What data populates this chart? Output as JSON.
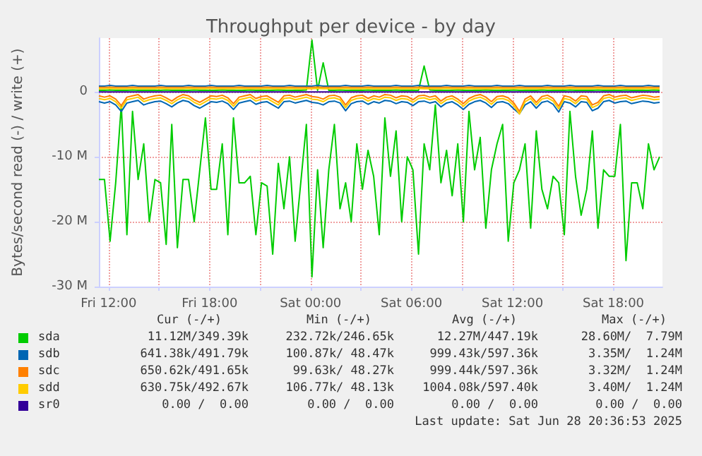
{
  "chart_data": {
    "type": "line",
    "title": "Throughput per device - by day",
    "ylabel": "Bytes/second read (-) / write (+)",
    "x": [
      "2025-06-27T11:25",
      "2025-06-27T11:45",
      "2025-06-27T12:05",
      "2025-06-27T12:25",
      "2025-06-27T12:45",
      "2025-06-27T13:05",
      "2025-06-27T13:25",
      "2025-06-27T13:45",
      "2025-06-27T14:05",
      "2025-06-27T14:25",
      "2025-06-27T14:45",
      "2025-06-27T15:05",
      "2025-06-27T15:25",
      "2025-06-27T15:45",
      "2025-06-27T16:05",
      "2025-06-27T16:25",
      "2025-06-27T16:45",
      "2025-06-27T17:05",
      "2025-06-27T17:25",
      "2025-06-27T17:45",
      "2025-06-27T18:05",
      "2025-06-27T18:25",
      "2025-06-27T18:45",
      "2025-06-27T19:05",
      "2025-06-27T19:25",
      "2025-06-27T19:45",
      "2025-06-27T20:05",
      "2025-06-27T20:25",
      "2025-06-27T20:45",
      "2025-06-27T21:05",
      "2025-06-27T21:25",
      "2025-06-27T21:45",
      "2025-06-27T22:05",
      "2025-06-27T22:25",
      "2025-06-27T22:45",
      "2025-06-27T23:05",
      "2025-06-27T23:25",
      "2025-06-27T23:45",
      "2025-06-28T00:05",
      "2025-06-28T00:25",
      "2025-06-28T00:45",
      "2025-06-28T01:05",
      "2025-06-28T01:25",
      "2025-06-28T01:45",
      "2025-06-28T02:05",
      "2025-06-28T02:25",
      "2025-06-28T02:45",
      "2025-06-28T03:05",
      "2025-06-28T03:25",
      "2025-06-28T03:45",
      "2025-06-28T04:05",
      "2025-06-28T04:25",
      "2025-06-28T04:45",
      "2025-06-28T05:05",
      "2025-06-28T05:25",
      "2025-06-28T05:45",
      "2025-06-28T06:05",
      "2025-06-28T06:25",
      "2025-06-28T06:45",
      "2025-06-28T07:05",
      "2025-06-28T07:25",
      "2025-06-28T07:45",
      "2025-06-28T08:05",
      "2025-06-28T08:25",
      "2025-06-28T08:45",
      "2025-06-28T09:05",
      "2025-06-28T09:25",
      "2025-06-28T09:45",
      "2025-06-28T10:05",
      "2025-06-28T10:25",
      "2025-06-28T10:45",
      "2025-06-28T11:05",
      "2025-06-28T11:25",
      "2025-06-28T11:45",
      "2025-06-28T12:05",
      "2025-06-28T12:25",
      "2025-06-28T12:45",
      "2025-06-28T13:05",
      "2025-06-28T13:25",
      "2025-06-28T13:45",
      "2025-06-28T14:05",
      "2025-06-28T14:25",
      "2025-06-28T14:45",
      "2025-06-28T15:05",
      "2025-06-28T15:25",
      "2025-06-28T15:45",
      "2025-06-28T16:05",
      "2025-06-28T16:25",
      "2025-06-28T16:45",
      "2025-06-28T17:05",
      "2025-06-28T17:25",
      "2025-06-28T17:45",
      "2025-06-28T18:05",
      "2025-06-28T18:25",
      "2025-06-28T18:45",
      "2025-06-28T19:05",
      "2025-06-28T19:25",
      "2025-06-28T19:45",
      "2025-06-28T20:05",
      "2025-06-28T20:25",
      "2025-06-28T20:45"
    ],
    "xlim": [
      "2025-06-27T11:25",
      "2025-06-28T20:55"
    ],
    "xticks": [
      {
        "value": "2025-06-27T12:00",
        "label": "Fri 12:00"
      },
      {
        "value": "2025-06-27T15:00",
        "label": null
      },
      {
        "value": "2025-06-27T18:00",
        "label": "Fri 18:00"
      },
      {
        "value": "2025-06-27T21:00",
        "label": null
      },
      {
        "value": "2025-06-28T00:00",
        "label": "Sat 00:00"
      },
      {
        "value": "2025-06-28T03:00",
        "label": null
      },
      {
        "value": "2025-06-28T06:00",
        "label": "Sat 06:00"
      },
      {
        "value": "2025-06-28T09:00",
        "label": null
      },
      {
        "value": "2025-06-28T12:00",
        "label": "Sat 12:00"
      },
      {
        "value": "2025-06-28T15:00",
        "label": null
      },
      {
        "value": "2025-06-28T18:00",
        "label": "Sat 18:00"
      }
    ],
    "ylim": [
      -30,
      8.3
    ],
    "yticks": [
      {
        "value": -30,
        "label": "-30 M"
      },
      {
        "value": -20,
        "label": "-20 M"
      },
      {
        "value": -10,
        "label": "-10 M"
      },
      {
        "value": 0,
        "label": "0"
      }
    ],
    "grid": true,
    "legend": "bottom",
    "marker": "none",
    "line_style": "solid",
    "series": [
      {
        "name": "sda",
        "color": "#00cc00",
        "values": [
          -13.5,
          -13.5,
          -23,
          -14,
          -2,
          -22,
          -3,
          -13.5,
          -8,
          -20,
          -13.5,
          -14,
          -23.5,
          -5,
          -24,
          -13.5,
          -13.5,
          -20,
          -12,
          -4,
          -15,
          -15,
          -8,
          -22,
          -4,
          -14,
          -14,
          -13,
          -22,
          -14,
          -14.5,
          -25,
          -11,
          -18,
          -10,
          -23,
          -14,
          -5,
          -28.5,
          -12,
          -24,
          -12,
          -5,
          -18,
          -14,
          -20,
          -8,
          -15,
          -9,
          -13,
          -22,
          -4,
          -13,
          -6,
          -20,
          -10,
          -12,
          -25,
          -8,
          -12,
          -2,
          -14,
          -9,
          -16,
          -8,
          -20,
          -3,
          -12,
          -7,
          -21,
          -12,
          -8,
          -5,
          -23,
          -14,
          -12,
          -8,
          -21,
          -6,
          -15,
          -18,
          -13,
          -14,
          -22,
          -3,
          -13,
          -19,
          -15,
          -6,
          -21,
          -12,
          -13,
          -13,
          -5,
          -26,
          -14,
          -14,
          -18,
          -8,
          -12,
          -10
        ]
      },
      {
        "color": "#00cc00",
        "values": [
          0.25,
          0.25,
          0.3,
          0.25,
          0.25,
          0.25,
          0.3,
          0.25,
          0.25,
          0.25,
          0.25,
          0.25,
          0.3,
          0.25,
          0.25,
          0.25,
          0.25,
          0.3,
          0.25,
          0.25,
          0.25,
          0.25,
          0.3,
          0.25,
          0.25,
          0.25,
          0.25,
          0.3,
          0.25,
          0.25,
          0.25,
          0.25,
          0.3,
          0.25,
          0.25,
          0.25,
          0.25,
          0.3,
          8,
          0.25,
          4.5,
          0.25,
          0.25,
          0.3,
          0.25,
          0.25,
          0.25,
          0.25,
          0.3,
          0.25,
          0.25,
          0.25,
          0.25,
          0.3,
          0.25,
          0.25,
          0.25,
          0.25,
          4,
          0.3,
          0.25,
          0.25,
          0.25,
          0.25,
          0.3,
          0.25,
          0.25,
          0.25,
          0.25,
          0.3,
          0.25,
          0.25,
          0.25,
          0.25,
          0.3,
          0.25,
          0.25,
          0.25,
          0.25,
          0.3,
          0.25,
          0.25,
          0.25,
          0.25,
          0.3,
          0.25,
          0.25,
          0.25,
          0.25,
          0.3,
          0.25,
          0.25,
          0.25,
          0.25,
          0.3,
          0.25,
          0.25,
          0.25,
          0.25,
          0.3,
          0.25
        ]
      },
      {
        "name": "sdb",
        "color": "#0066b3",
        "values": [
          -1.5,
          -1.7,
          -1.5,
          -2,
          -3,
          -1.7,
          -1.5,
          -1.3,
          -2,
          -1.7,
          -1.5,
          -1.4,
          -1.8,
          -2.3,
          -1.7,
          -1.3,
          -1.5,
          -2.1,
          -2.5,
          -2,
          -1.5,
          -1.6,
          -1.4,
          -1.8,
          -2.7,
          -1.7,
          -1.5,
          -1.3,
          -1.9,
          -1.6,
          -1.5,
          -2,
          -2.5,
          -1.5,
          -1.4,
          -1.7,
          -1.5,
          -1.3,
          -1.6,
          -1.7,
          -2,
          -1.5,
          -1.4,
          -1.7,
          -2.9,
          -1.8,
          -1.5,
          -1.4,
          -1.9,
          -1.5,
          -1.7,
          -1.3,
          -1.4,
          -1.8,
          -1.5,
          -1.6,
          -2.1,
          -1.5,
          -1.4,
          -1.7,
          -1.5,
          -2.3,
          -1.7,
          -1.5,
          -2,
          -2.7,
          -1.9,
          -1.5,
          -1.3,
          -1.7,
          -2.4,
          -1.6,
          -1.5,
          -1.8,
          -2.6,
          -3.35,
          -2,
          -1.5,
          -2.5,
          -1.6,
          -1.4,
          -1.9,
          -3.1,
          -1.5,
          -1.7,
          -2.3,
          -1.5,
          -1.6,
          -2.9,
          -2.5,
          -1.5,
          -1.3,
          -1.7,
          -1.5,
          -1.4,
          -1.8,
          -1.6,
          -1.4,
          -1.5,
          -1.7,
          -1.6
        ]
      },
      {
        "color": "#0066b3",
        "values": [
          0.9,
          0.9,
          1,
          0.9,
          0.9,
          0.9,
          1,
          0.9,
          0.9,
          0.9,
          0.9,
          1,
          0.9,
          0.9,
          0.9,
          0.9,
          1,
          0.9,
          0.9,
          0.9,
          1,
          0.9,
          0.9,
          0.9,
          0.9,
          1,
          0.9,
          0.9,
          0.9,
          0.9,
          1,
          0.9,
          0.9,
          0.9,
          1,
          0.9,
          0.9,
          0.9,
          0.9,
          1,
          0.9,
          0.9,
          0.9,
          0.9,
          1,
          0.9,
          0.9,
          0.9,
          1,
          0.9,
          0.9,
          0.9,
          0.9,
          1,
          0.9,
          0.9,
          0.9,
          1,
          0.9,
          0.9,
          0.9,
          0.9,
          1,
          0.9,
          0.9,
          0.9,
          1,
          0.9,
          0.9,
          0.9,
          0.9,
          1,
          0.9,
          0.9,
          0.9,
          1,
          0.9,
          0.9,
          0.9,
          0.9,
          1,
          0.9,
          0.9,
          0.9,
          1,
          0.9,
          0.9,
          0.9,
          0.9,
          1,
          0.9,
          0.9,
          0.9,
          1,
          0.9,
          0.9,
          0.9,
          0.9,
          1,
          0.9,
          0.9
        ]
      },
      {
        "name": "sdc",
        "color": "#ff8000",
        "values": [
          -0.6,
          -0.8,
          -0.6,
          -1.1,
          -2.1,
          -0.8,
          -0.6,
          -0.4,
          -1.1,
          -0.8,
          -0.6,
          -0.5,
          -0.9,
          -1.4,
          -0.8,
          -0.4,
          -0.6,
          -1.2,
          -1.6,
          -1.1,
          -0.6,
          -0.7,
          -0.5,
          -0.9,
          -1.8,
          -0.8,
          -0.6,
          -0.4,
          -1,
          -0.7,
          -0.6,
          -1.1,
          -1.6,
          -0.6,
          -0.5,
          -0.8,
          -0.6,
          -0.4,
          -0.7,
          -0.8,
          -1.1,
          -0.6,
          -0.5,
          -0.8,
          -2,
          -0.9,
          -0.6,
          -0.5,
          -1,
          -0.6,
          -0.8,
          -0.4,
          -0.5,
          -0.9,
          -0.6,
          -0.7,
          -1.2,
          -0.6,
          -0.5,
          -0.8,
          -0.6,
          -1.4,
          -0.8,
          -0.6,
          -1.1,
          -1.8,
          -1,
          -0.6,
          -0.4,
          -0.8,
          -1.5,
          -0.7,
          -0.6,
          -0.9,
          -1.7,
          -3,
          -1.1,
          -0.6,
          -1.6,
          -0.7,
          -0.5,
          -1,
          -2.2,
          -0.6,
          -0.8,
          -1.4,
          -0.6,
          -0.7,
          -2,
          -1.6,
          -0.6,
          -0.4,
          -0.8,
          -0.6,
          -0.5,
          -0.9,
          -0.7,
          -0.5,
          -0.6,
          -0.8,
          -0.7
        ]
      },
      {
        "color": "#ff8000",
        "values": [
          0.7,
          0.7,
          0.75,
          0.7,
          0.7,
          0.7,
          0.75,
          0.7,
          0.7,
          0.7,
          0.7,
          0.75,
          0.7,
          0.7,
          0.7,
          0.7,
          0.75,
          0.7,
          0.7,
          0.7,
          0.75,
          0.7,
          0.7,
          0.7,
          0.7,
          0.75,
          0.7,
          0.7,
          0.7,
          0.7,
          0.75,
          0.7,
          0.7,
          0.7,
          0.75,
          0.7,
          0.7,
          0.7,
          0.7,
          0.75,
          0.7,
          0.7,
          0.7,
          0.7,
          0.75,
          0.7,
          0.7,
          0.7,
          0.75,
          0.7,
          0.7,
          0.7,
          0.7,
          0.75,
          0.7,
          0.7,
          0.7,
          0.75,
          0.7,
          0.7,
          0.7,
          0.7,
          0.75,
          0.7,
          0.7,
          0.7,
          0.75,
          0.7,
          0.7,
          0.7,
          0.7,
          0.75,
          0.7,
          0.7,
          0.7,
          0.75,
          0.7,
          0.7,
          0.7,
          0.7,
          0.75,
          0.7,
          0.7,
          0.7,
          0.75,
          0.7,
          0.7,
          0.7,
          0.7,
          0.75,
          0.7,
          0.7,
          0.7,
          0.75,
          0.7,
          0.7,
          0.7,
          0.7,
          0.75,
          0.7,
          0.7
        ]
      },
      {
        "name": "sdd",
        "color": "#ffcc00",
        "values": [
          -1,
          -1.2,
          -1,
          -1.5,
          -2.5,
          -1.2,
          -1,
          -0.8,
          -1.5,
          -1.2,
          -1,
          -0.9,
          -1.3,
          -1.8,
          -1.2,
          -0.8,
          -1,
          -1.6,
          -2,
          -1.5,
          -1,
          -1.1,
          -0.9,
          -1.3,
          -2.2,
          -1.2,
          -1,
          -0.8,
          -1.4,
          -1.1,
          -1,
          -1.5,
          -2,
          -1,
          -0.9,
          -1.2,
          -1,
          -0.8,
          -1.1,
          -1.2,
          -1.5,
          -1,
          -0.9,
          -1.2,
          -2.4,
          -1.3,
          -1,
          -0.9,
          -1.4,
          -1,
          -1.2,
          -0.8,
          -0.9,
          -1.3,
          -1,
          -1.1,
          -1.6,
          -1,
          -0.9,
          -1.2,
          -1,
          -1.8,
          -1.2,
          -1,
          -1.5,
          -2.2,
          -1.4,
          -1,
          -0.8,
          -1.2,
          -1.9,
          -1.1,
          -1,
          -1.3,
          -2.1,
          -3.4,
          -1.5,
          -1,
          -2,
          -1.1,
          -0.9,
          -1.4,
          -2.6,
          -1,
          -1.2,
          -1.8,
          -1,
          -1.1,
          -2.4,
          -2,
          -1,
          -0.8,
          -1.2,
          -1,
          -0.9,
          -1.3,
          -1.1,
          -0.9,
          -1,
          -1.2,
          -1.1
        ]
      },
      {
        "color": "#ffcc00",
        "values": [
          0.5,
          0.5,
          0.55,
          0.5,
          0.5,
          0.5,
          0.55,
          0.5,
          0.5,
          0.5,
          0.5,
          0.55,
          0.5,
          0.5,
          0.5,
          0.5,
          0.55,
          0.5,
          0.5,
          0.5,
          0.55,
          0.5,
          0.5,
          0.5,
          0.5,
          0.55,
          0.5,
          0.5,
          0.5,
          0.5,
          0.55,
          0.5,
          0.5,
          0.5,
          0.55,
          0.5,
          0.5,
          0.5,
          0.5,
          0.55,
          0.5,
          0.5,
          0.5,
          0.5,
          0.55,
          0.5,
          0.5,
          0.5,
          0.55,
          0.5,
          0.5,
          0.5,
          0.5,
          0.55,
          0.5,
          0.5,
          0.5,
          0.55,
          0.5,
          0.5,
          0.5,
          0.5,
          0.55,
          0.5,
          0.5,
          0.5,
          0.55,
          0.5,
          0.5,
          0.5,
          0.5,
          0.55,
          0.5,
          0.5,
          0.5,
          0.55,
          0.5,
          0.5,
          0.5,
          0.5,
          0.55,
          0.5,
          0.5,
          0.5,
          0.55,
          0.5,
          0.5,
          0.5,
          0.5,
          0.55,
          0.5,
          0.5,
          0.5,
          0.55,
          0.5,
          0.5,
          0.5,
          0.5,
          0.55,
          0.5,
          0.5
        ]
      },
      {
        "name": "sr0",
        "color": "#330099",
        "values": [
          0,
          0,
          0,
          0,
          0,
          0,
          0,
          0,
          0,
          0,
          0,
          0,
          0,
          0,
          0,
          0,
          0,
          0,
          0,
          0,
          0,
          0,
          0,
          0,
          0,
          0,
          0,
          0,
          0,
          0,
          0,
          0,
          0,
          0,
          0,
          0,
          0,
          0,
          0,
          0,
          0,
          0,
          0,
          0,
          0,
          0,
          0,
          0,
          0,
          0,
          0,
          0,
          0,
          0,
          0,
          0,
          0,
          0,
          0,
          0,
          0,
          0,
          0,
          0,
          0,
          0,
          0,
          0,
          0,
          0,
          0,
          0,
          0,
          0,
          0,
          0,
          0,
          0,
          0,
          0,
          0,
          0,
          0,
          0,
          0,
          0,
          0,
          0,
          0,
          0,
          0,
          0,
          0,
          0,
          0,
          0,
          0,
          0,
          0,
          0,
          0
        ]
      }
    ],
    "annotations": [
      "Cur (-/+)",
      "Min (-/+)",
      "Avg (-/+)",
      "Max (-/+)",
      "11.12M/349.39k",
      "232.72k/246.65k",
      "12.27M/447.19k",
      "28.60M/  7.79M",
      "641.38k/491.79k",
      "100.87k/ 48.47k",
      "999.43k/597.36k",
      "3.35M/  1.24M",
      "650.62k/491.65k",
      "99.63k/ 48.27k",
      "999.44k/597.36k",
      "3.32M/  1.24M",
      "630.75k/492.67k",
      "106.77k/ 48.13k",
      "1004.08k/597.40k",
      "3.40M/  1.24M",
      "0.00 /  0.00",
      "0.00 /  0.00",
      "0.00 /  0.00",
      "0.00 /  0.00",
      "Last update: Sat Jun 28 20:36:53 2025"
    ]
  }
}
